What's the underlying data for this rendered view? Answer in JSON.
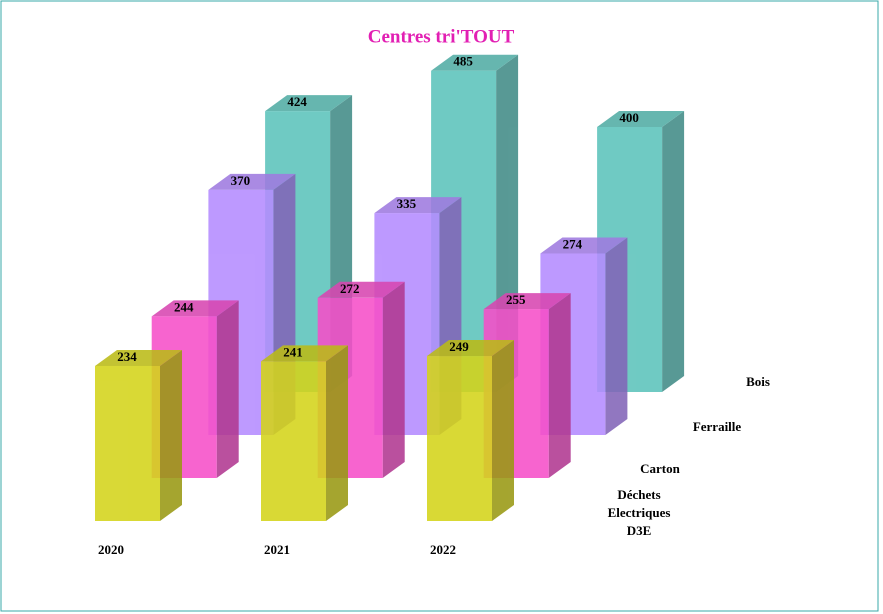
{
  "chart_data": {
    "type": "bar3d",
    "title": "Centres tri'TOUT",
    "categories": [
      "2020",
      "2021",
      "2022"
    ],
    "series": [
      {
        "name": "Déchets Electriques D3E",
        "color": "#d4d41a",
        "values": [
          234,
          241,
          249
        ]
      },
      {
        "name": "Carton",
        "color": "#f64fc9",
        "values": [
          244,
          272,
          255
        ]
      },
      {
        "name": "Ferraille",
        "color": "#b58cff",
        "values": [
          370,
          335,
          274
        ]
      },
      {
        "name": "Bois",
        "color": "#5cc3bb",
        "values": [
          424,
          485,
          400
        ]
      }
    ]
  }
}
